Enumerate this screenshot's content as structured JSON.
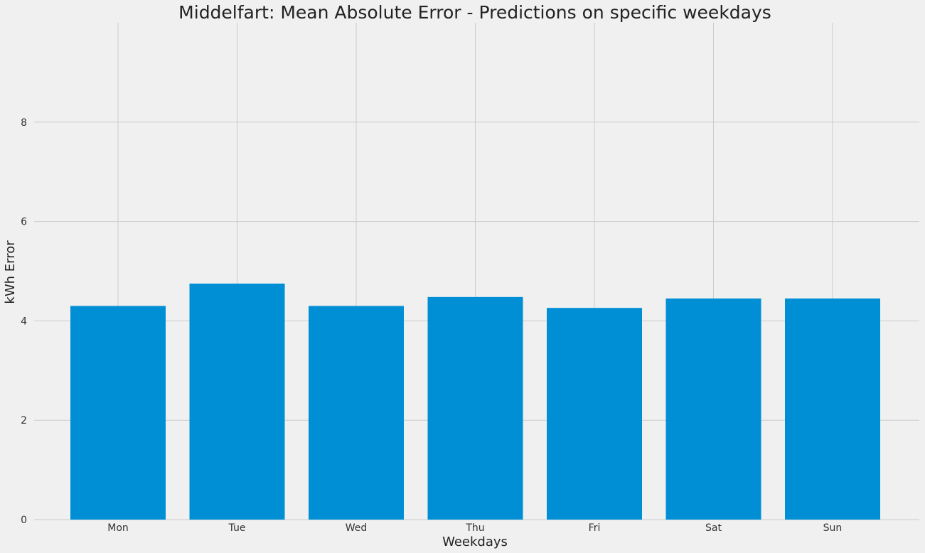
{
  "chart_data": {
    "type": "bar",
    "title": "Middelfart: Mean Absolute Error - Predictions on specific weekdays",
    "xlabel": "Weekdays",
    "ylabel": "kWh Error",
    "categories": [
      "Mon",
      "Tue",
      "Wed",
      "Thu",
      "Fri",
      "Sat",
      "Sun"
    ],
    "values": [
      4.3,
      4.75,
      4.3,
      4.48,
      4.26,
      4.45,
      4.45
    ],
    "ylim": [
      0,
      10
    ],
    "yticks": [
      0,
      2,
      4,
      6,
      8
    ],
    "ytick_labels": [
      "0",
      "2",
      "4",
      "6",
      "8"
    ],
    "grid": true,
    "bar_color": "#008fd5",
    "background_color": "#f0f0f0",
    "grid_color": "#cbcbcb"
  }
}
